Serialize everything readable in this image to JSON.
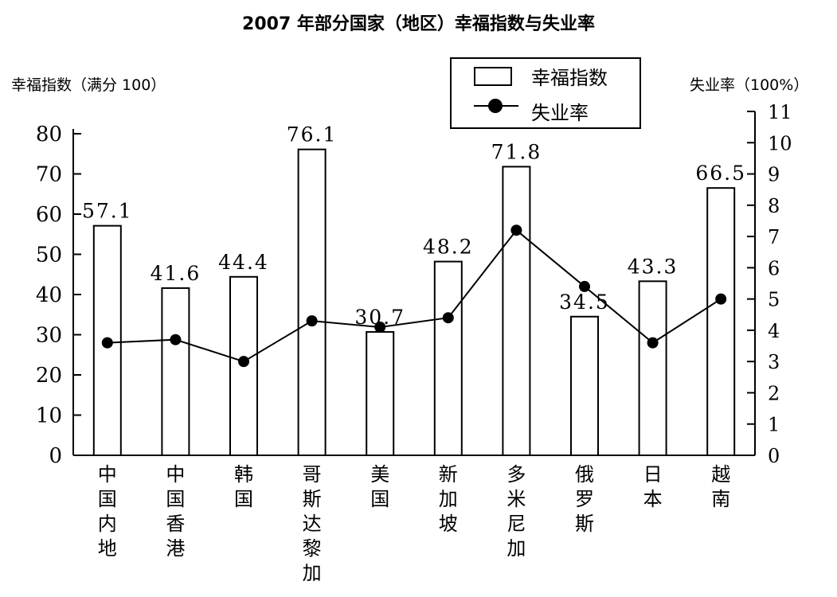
{
  "chart_data": {
    "type": "bar",
    "title": "2007 年部分国家（地区）幸福指数与失业率",
    "categories": [
      "中国内地",
      "中国香港",
      "韩国",
      "哥斯达黎加",
      "美国",
      "新加坡",
      "多米尼加",
      "俄罗斯",
      "日本",
      "越南"
    ],
    "series": [
      {
        "name": "幸福指数",
        "type": "bar",
        "axis": "left",
        "values": [
          57.1,
          41.6,
          44.4,
          76.1,
          30.7,
          48.2,
          71.8,
          34.5,
          43.3,
          66.5
        ],
        "labels": [
          "57.1",
          "41.6",
          "44.4",
          "76.1",
          "30.7",
          "48.2",
          "71.8",
          "34.5",
          "43.3",
          "66.5"
        ]
      },
      {
        "name": "失业率",
        "type": "line",
        "axis": "right",
        "values": [
          3.6,
          3.7,
          3.0,
          4.3,
          4.1,
          4.4,
          7.2,
          5.4,
          3.6,
          5.0
        ]
      }
    ],
    "ylabel_left": "幸福指数（满分 100）",
    "ylabel_right": "失业率（100%）",
    "ylim_left": [
      0,
      80
    ],
    "ylim_right": [
      0,
      11
    ],
    "yticks_left": [
      "0",
      "10",
      "20",
      "30",
      "40",
      "50",
      "60",
      "70",
      "80"
    ],
    "yticks_right": [
      "0",
      "1",
      "2",
      "3",
      "4",
      "5",
      "6",
      "7",
      "8",
      "9",
      "10",
      "11"
    ],
    "legend_placement": "top-right",
    "grid": false,
    "colors": {
      "bar_fill": "#ffffff",
      "bar_stroke": "#000000",
      "line": "#000000",
      "marker": "#000000"
    }
  }
}
